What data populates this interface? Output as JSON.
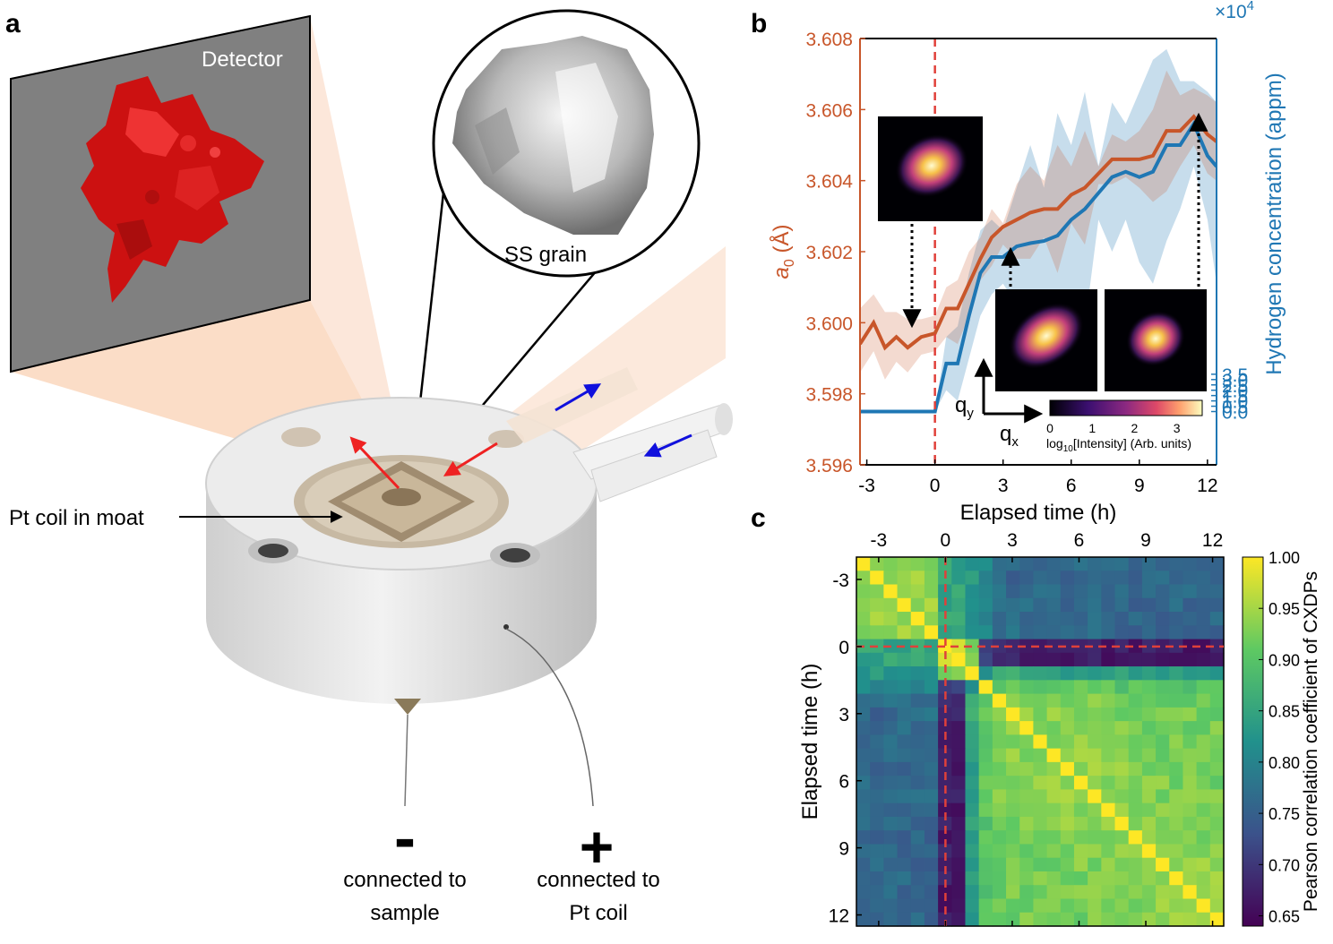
{
  "panels": {
    "a": "a",
    "b": "b",
    "c": "c"
  },
  "panel_a": {
    "detector_label": "Detector",
    "grain_label": "SS grain",
    "coil_label": "Pt coil in moat",
    "minus_symbol": "-",
    "plus_symbol": "+",
    "minus_caption_1": "connected to",
    "minus_caption_2": "sample",
    "plus_caption_1": "connected to",
    "plus_caption_2": "Pt coil"
  },
  "colors": {
    "lattice": "#c8562a",
    "hydrogen": "#1f77b4",
    "dashed": "#e0403a",
    "detector_bg": "#808080",
    "particle": "#cc1111",
    "beam": "#f8d9c3"
  },
  "chart_data": [
    {
      "type": "line",
      "panel": "b",
      "xlabel": "Elapsed time (h)",
      "ylabel_left_main": "a",
      "ylabel_left_sub": "0",
      "ylabel_left_unit": " (Å)",
      "ylabel_right": "Hydrogen concentration (appm)",
      "right_multiplier_base": "×10",
      "right_multiplier_exp": "4",
      "xlim": [
        -3.3,
        12.4
      ],
      "ylim_left": [
        3.596,
        3.608
      ],
      "ylim_right": [
        -0.0005,
        0.0035
      ],
      "x_ticks": [
        -3,
        0,
        3,
        6,
        9,
        12
      ],
      "x_tick_labels": [
        "-3",
        "0",
        "3",
        "6",
        "9",
        "12"
      ],
      "left_ticks": [
        3.596,
        3.598,
        3.6,
        3.602,
        3.604,
        3.606,
        3.608
      ],
      "left_tick_labels": [
        "3.596",
        "3.598",
        "3.600",
        "3.602",
        "3.604",
        "3.606",
        "3.608"
      ],
      "right_ticks": [
        0.0,
        0.5,
        1.0,
        1.5,
        2.0,
        2.5,
        3.0,
        3.5
      ],
      "right_tick_labels": [
        "0.0",
        "0.5",
        "1.0",
        "1.5",
        "2.0",
        "2.5",
        "3.0",
        "3.5"
      ],
      "marker_x": 0,
      "x": [
        -3.3,
        -2.7,
        -2.2,
        -1.7,
        -1.2,
        -0.6,
        0.0,
        0.5,
        1.0,
        1.5,
        2.0,
        2.5,
        3.0,
        3.6,
        4.2,
        4.8,
        5.4,
        6.0,
        6.6,
        7.2,
        7.8,
        8.4,
        9.0,
        9.6,
        10.2,
        10.8,
        11.4,
        12.0,
        12.4
      ],
      "series": [
        {
          "axis": "left",
          "values": [
            3.5994,
            3.6,
            3.5993,
            3.5996,
            3.5993,
            3.5996,
            3.5997,
            3.6004,
            3.6004,
            3.6011,
            3.6018,
            3.6024,
            3.6027,
            3.6029,
            3.6031,
            3.6032,
            3.6032,
            3.6036,
            3.6038,
            3.6042,
            3.6046,
            3.6046,
            3.6046,
            3.6047,
            3.6054,
            3.6054,
            3.6058,
            3.6053,
            3.6051
          ],
          "band_upper": [
            3.6004,
            3.6008,
            3.6003,
            3.6003,
            3.6001,
            3.6001,
            3.6002,
            3.601,
            3.6012,
            3.602,
            3.6024,
            3.6032,
            3.6028,
            3.6039,
            3.6044,
            3.604,
            3.605,
            3.6044,
            3.6054,
            3.6044,
            3.6053,
            3.6051,
            3.6054,
            3.606,
            3.6071,
            3.6064,
            3.6066,
            3.6064,
            3.6062
          ],
          "band_lower": [
            3.5986,
            3.5992,
            3.5984,
            3.5989,
            3.5986,
            3.5991,
            3.5992,
            3.5996,
            3.5994,
            3.6002,
            3.6012,
            3.6016,
            3.6022,
            3.6018,
            3.6018,
            3.6024,
            3.6014,
            3.6028,
            3.6022,
            3.6039,
            3.6039,
            3.6041,
            3.6038,
            3.6034,
            3.6037,
            3.6044,
            3.605,
            3.6042,
            3.604
          ]
        },
        {
          "axis": "right",
          "values": [
            0.0,
            0.0,
            0.0,
            0.0,
            0.0,
            0.0,
            0.0,
            0.00045,
            0.00045,
            0.0009,
            0.0013,
            0.00145,
            0.00145,
            0.00155,
            0.00158,
            0.0016,
            0.00165,
            0.0018,
            0.0019,
            0.00205,
            0.0022,
            0.00225,
            0.0022,
            0.00225,
            0.0025,
            0.0025,
            0.0027,
            0.0024,
            0.0023
          ],
          "band_upper": [
            0.0,
            0.0,
            0.0,
            0.0,
            0.0,
            0.0,
            0.0,
            0.0007,
            0.0008,
            0.0013,
            0.0017,
            0.0018,
            0.0017,
            0.0021,
            0.0025,
            0.0021,
            0.0028,
            0.0025,
            0.003,
            0.0023,
            0.0029,
            0.0027,
            0.003,
            0.0033,
            0.0034,
            0.0031,
            0.0031,
            0.003,
            0.0029
          ],
          "band_lower": [
            0.0,
            0.0,
            0.0,
            0.0,
            0.0,
            0.0,
            0.0,
            0.0002,
            0.0001,
            0.0005,
            0.0009,
            0.0011,
            0.0012,
            0.001,
            0.0007,
            0.0011,
            0.0005,
            0.0011,
            0.0008,
            0.0018,
            0.0015,
            0.0018,
            0.0014,
            0.0012,
            0.0016,
            0.0019,
            0.0023,
            0.0018,
            0.0012
          ]
        }
      ],
      "insets": {
        "q_y_label": "q",
        "q_y_sub": "y",
        "q_x_label": "q",
        "q_x_sub": "x",
        "colorbar_ticks": [
          0,
          1,
          2,
          3
        ],
        "colorbar_tick_labels": [
          "0",
          "1",
          "2",
          "3"
        ],
        "colorbar_label_pre": "log",
        "colorbar_label_sub": "10",
        "colorbar_label_post": "[Intensity] (Arb. units)",
        "colorbar_range": [
          0,
          3.6
        ]
      }
    },
    {
      "type": "heatmap",
      "panel": "c",
      "ylabel": "Elapsed time (h)",
      "colorbar_label": "Pearson correlation coefficient of CXDPs",
      "time_range": [
        -4,
        12.5
      ],
      "x_ticks": [
        -3,
        0,
        3,
        6,
        9,
        12
      ],
      "x_tick_labels": [
        "-3",
        "0",
        "3",
        "6",
        "9",
        "12"
      ],
      "y_ticks": [
        -3,
        0,
        3,
        6,
        9,
        12
      ],
      "y_tick_labels": [
        "-3",
        "0",
        "3",
        "6",
        "9",
        "12"
      ],
      "colorbar_range": [
        0.64,
        1.0
      ],
      "colorbar_ticks": [
        0.65,
        0.7,
        0.75,
        0.8,
        0.85,
        0.9,
        0.95,
        1.0
      ],
      "colorbar_tick_labels": [
        "0.65",
        "0.70",
        "0.75",
        "0.80",
        "0.85",
        "0.90",
        "0.95",
        "1.00"
      ],
      "marker_time": 0,
      "n_cells": 27,
      "groups": [
        0,
        0,
        0,
        0,
        0,
        0,
        1,
        1,
        2,
        3,
        4,
        4,
        4,
        4,
        4,
        4,
        4,
        4,
        4,
        4,
        4,
        4,
        4,
        4,
        4,
        4,
        4
      ],
      "group_correlation": [
        [
          0.95,
          0.86,
          0.84,
          0.82,
          0.78
        ],
        [
          0.86,
          0.97,
          0.92,
          0.72,
          0.69
        ],
        [
          0.84,
          0.92,
          1.0,
          0.82,
          0.86
        ],
        [
          0.82,
          0.72,
          0.82,
          1.0,
          0.92
        ],
        [
          0.78,
          0.69,
          0.86,
          0.92,
          0.94
        ]
      ]
    }
  ]
}
